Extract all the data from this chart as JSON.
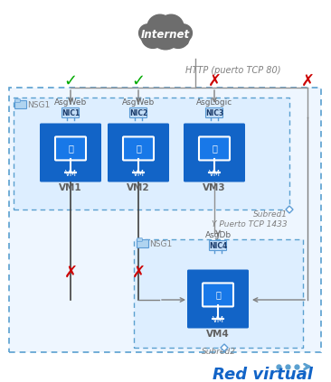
{
  "title": "Red virtual",
  "internet_label": "Internet",
  "http_label": "HTTP (puerto TCP 80)",
  "subred1_label": "Subred1",
  "subred2_label": "Subred2",
  "subred1_port_label": "Y Puerto TCP 1433",
  "nsg1_label": "NSG1",
  "nic_labels": [
    "NIC1",
    "NIC2",
    "NIC3",
    "NIC4"
  ],
  "asg_labels": [
    "AsgWeb",
    "AsgWeb",
    "AsgLogic",
    "AsgDb"
  ],
  "vm_labels": [
    "VM1",
    "VM2",
    "VM3",
    "VM4"
  ],
  "vm_inner_label": "VM",
  "bg_color": "#ffffff",
  "cloud_color": "#6d6d6d",
  "outer_bg": "#eef6ff",
  "inner_bg": "#ddeeff",
  "subred2_bg": "#ddeeff",
  "dashed_border_color": "#5aa0d0",
  "vm_bg": "#1264c7",
  "vm_dark": "#0e52a8",
  "monitor_face": "#1878e8",
  "nic_border": "#5b9bd5",
  "nic_fill": "#c5dff8",
  "arrow_color": "#808080",
  "check_color": "#00aa00",
  "cross_color": "#cc0000",
  "text_color": "#808080",
  "label_color": "#606060",
  "red_virtual_color": "#1264c7",
  "line_color": "#505050",
  "diamond_color": "#5b9bd5"
}
